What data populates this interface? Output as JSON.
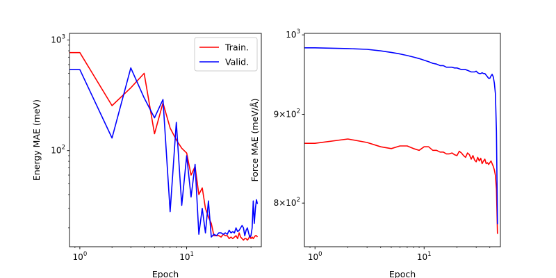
{
  "chart_data": [
    {
      "type": "line",
      "xscale": "log",
      "yscale": "log",
      "xlabel": "Epoch",
      "ylabel": "Energy MAE (meV)",
      "xlim": [
        0.8,
        50
      ],
      "ylim": [
        13.5,
        1150
      ],
      "xticks": [
        {
          "value": 1,
          "base": "10",
          "exp": "0"
        },
        {
          "value": 10,
          "base": "10",
          "exp": "1"
        }
      ],
      "yticks": [
        {
          "value": 100,
          "base": "10",
          "exp": "2"
        },
        {
          "value": 1000,
          "base": "10",
          "exp": "3"
        }
      ],
      "legend": {
        "position": "upper right",
        "entries": [
          "Train.",
          "Valid."
        ]
      },
      "series": [
        {
          "name": "Train.",
          "color": "#ff0000",
          "x": [
            0.8,
            1,
            2,
            3,
            4,
            5,
            6,
            7,
            8,
            9,
            10,
            11,
            12,
            13,
            14,
            15,
            16,
            17,
            18,
            19,
            20,
            21,
            22,
            23,
            24,
            25,
            26,
            27,
            28,
            29,
            30,
            31,
            32,
            33,
            34,
            35,
            36,
            37,
            38,
            39,
            40,
            41,
            42,
            43,
            44,
            45,
            46
          ],
          "y": [
            770,
            770,
            255,
            370,
            500,
            142,
            270,
            160,
            125,
            105,
            95,
            60,
            72,
            40,
            46,
            30,
            25,
            22,
            17,
            17,
            17,
            16.5,
            17.5,
            17,
            17,
            16,
            16.5,
            16,
            16.5,
            17,
            16,
            18,
            16.5,
            16,
            15.5,
            16,
            16,
            15.5,
            16,
            17,
            16,
            16.5,
            16,
            16.5,
            17,
            17,
            16.5
          ]
        },
        {
          "name": "Valid.",
          "color": "#0000ff",
          "x": [
            0.8,
            1,
            2,
            3,
            4,
            5,
            6,
            7,
            8,
            9,
            10,
            11,
            12,
            13,
            14,
            15,
            16,
            17,
            18,
            19,
            20,
            21,
            22,
            23,
            24,
            25,
            26,
            27,
            28,
            29,
            30,
            31,
            32,
            33,
            34,
            35,
            36,
            37,
            38,
            39,
            40,
            41,
            42,
            43,
            44,
            45,
            46
          ],
          "y": [
            540,
            540,
            130,
            560,
            300,
            198,
            290,
            28,
            180,
            32,
            90,
            38,
            75,
            17.5,
            30,
            18,
            35,
            16.5,
            17.5,
            17,
            18,
            18,
            17.5,
            18,
            17.5,
            19,
            18,
            18.5,
            18,
            20,
            18.5,
            19,
            20,
            21,
            20,
            17,
            19,
            20,
            18,
            16.5,
            17,
            20,
            35,
            22,
            30,
            36,
            33
          ]
        }
      ]
    },
    {
      "type": "line",
      "xscale": "log",
      "yscale": "log",
      "xlabel": "Epoch",
      "ylabel": "Force MAE (meV/Å)",
      "xlim": [
        0.8,
        50
      ],
      "ylim": [
        755,
        1002
      ],
      "xticks": [
        {
          "value": 1,
          "base": "10",
          "exp": "0"
        },
        {
          "value": 10,
          "base": "10",
          "exp": "1"
        }
      ],
      "yticks": [
        {
          "value": 800,
          "base": "8×10",
          "exp": "2"
        },
        {
          "value": 900,
          "base": "9×10",
          "exp": "2"
        },
        {
          "value": 1000,
          "base": "10",
          "exp": "3"
        }
      ],
      "series": [
        {
          "name": "Train.",
          "color": "#ff0000",
          "x": [
            0.8,
            1,
            2,
            3,
            4,
            5,
            6,
            7,
            8,
            9,
            10,
            11,
            12,
            13,
            14,
            15,
            16,
            17,
            18,
            19,
            20,
            21,
            22,
            23,
            24,
            25,
            26,
            27,
            28,
            29,
            30,
            31,
            32,
            33,
            34,
            35,
            36,
            37,
            38,
            39,
            40,
            41,
            42,
            43,
            44,
            45,
            46,
            47
          ],
          "y": [
            866,
            866,
            871,
            867,
            862,
            860,
            863,
            863,
            860,
            858,
            862,
            862,
            858,
            858,
            856,
            856,
            854,
            854,
            855,
            853,
            852,
            857,
            855,
            852,
            850,
            855,
            853,
            848,
            852,
            847,
            845,
            850,
            846,
            849,
            843,
            846,
            848,
            843,
            844,
            842,
            844,
            846,
            843,
            840,
            836,
            830,
            815,
            768
          ]
        },
        {
          "name": "Valid.",
          "color": "#0000ff",
          "x": [
            0.8,
            1,
            2,
            3,
            4,
            5,
            6,
            7,
            8,
            9,
            10,
            11,
            12,
            13,
            14,
            15,
            16,
            17,
            18,
            19,
            20,
            21,
            22,
            23,
            24,
            25,
            26,
            27,
            28,
            29,
            30,
            31,
            32,
            33,
            34,
            35,
            36,
            37,
            38,
            39,
            40,
            41,
            42,
            43,
            44,
            45,
            46,
            47
          ],
          "y": [
            983,
            983,
            982,
            981,
            979,
            977,
            975,
            973,
            971,
            969,
            967,
            965,
            963,
            962,
            960,
            960,
            958,
            958,
            958,
            957,
            957,
            956,
            955,
            955,
            955,
            954,
            953,
            952,
            952,
            952,
            953,
            951,
            950,
            950,
            951,
            950,
            950,
            948,
            946,
            944,
            944,
            947,
            949,
            946,
            938,
            925,
            880,
            778
          ]
        }
      ]
    }
  ]
}
